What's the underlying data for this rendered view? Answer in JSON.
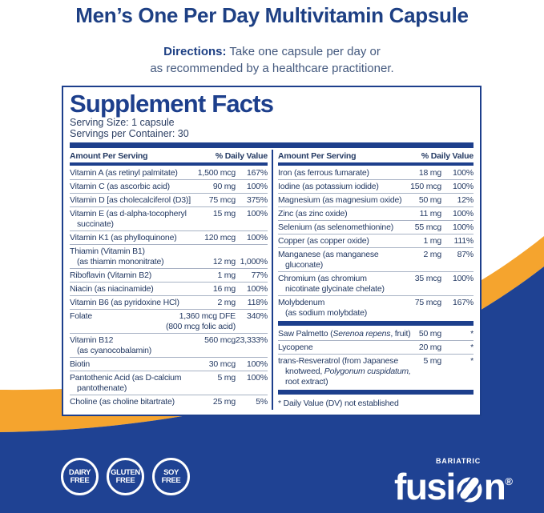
{
  "colors": {
    "navy": "#1e4084",
    "panel_ink": "#1d3f8c",
    "orange": "#f5a42e",
    "band_blue": "#1f4293",
    "text": "#243a63"
  },
  "page": {
    "title": "Men’s One Per Day Multivitamin Capsule",
    "directions_label": "Directions:",
    "directions_line1": "Take one capsule per day or",
    "directions_line2": "as recommended by a healthcare practitioner."
  },
  "panel": {
    "heading": "Supplement Facts",
    "serving_size": "Serving Size: 1 capsule",
    "servings_per_container": "Servings per Container:  30",
    "col_header_left": "Amount Per Serving",
    "col_header_right": "% Daily Value",
    "footnote": "* Daily Value (DV) not established",
    "left_rows": [
      {
        "lines": [
          [
            {
              "t": "Vitamin A (as retinyl palmitate)"
            }
          ]
        ],
        "amount": "1,500 mcg",
        "dv": "167%"
      },
      {
        "lines": [
          [
            {
              "t": "Vitamin C (as ascorbic acid)"
            }
          ]
        ],
        "amount": "90 mg",
        "dv": "100%"
      },
      {
        "lines": [
          [
            {
              "t": "Vitamin D [as cholecalciferol (D3)]"
            }
          ]
        ],
        "amount": "75 mcg",
        "dv": "375%"
      },
      {
        "lines": [
          [
            {
              "t": "Vitamin E (as d-alpha-tocopheryl"
            }
          ],
          [
            {
              "t": "succinate)"
            }
          ]
        ],
        "amount": "15 mg",
        "dv": "100%"
      },
      {
        "lines": [
          [
            {
              "t": "Vitamin K1 (as phylloquinone)"
            }
          ]
        ],
        "amount": "120 mcg",
        "dv": "100%"
      },
      {
        "lines": [
          [
            {
              "t": "Thiamin (Vitamin B1)"
            }
          ],
          [
            {
              "t": "(as thiamin mononitrate)"
            }
          ]
        ],
        "amount": "12 mg",
        "dv": "1,000%",
        "bottom": true
      },
      {
        "lines": [
          [
            {
              "t": "Riboflavin (Vitamin B2)"
            }
          ]
        ],
        "amount": "1 mg",
        "dv": "77%"
      },
      {
        "lines": [
          [
            {
              "t": "Niacin (as niacinamide)"
            }
          ]
        ],
        "amount": "16 mg",
        "dv": "100%"
      },
      {
        "lines": [
          [
            {
              "t": "Vitamin B6 (as pyridoxine HCl)"
            }
          ]
        ],
        "amount": "2 mg",
        "dv": "118%"
      },
      {
        "lines": [
          [
            {
              "t": "Folate"
            }
          ]
        ],
        "amount_lines": [
          "1,360 mcg DFE",
          "(800 mcg folic acid)"
        ],
        "dv": "340%"
      },
      {
        "lines": [
          [
            {
              "t": "Vitamin B12"
            }
          ],
          [
            {
              "t": "(as cyanocobalamin)"
            }
          ]
        ],
        "amount": "560 mcg",
        "dv": "23,333%"
      },
      {
        "lines": [
          [
            {
              "t": "Biotin"
            }
          ]
        ],
        "amount": "30 mcg",
        "dv": "100%"
      },
      {
        "lines": [
          [
            {
              "t": "Pantothenic Acid (as D-calcium"
            }
          ],
          [
            {
              "t": "pantothenate)"
            }
          ]
        ],
        "amount": "5 mg",
        "dv": "100%"
      },
      {
        "lines": [
          [
            {
              "t": "Choline (as choline bitartrate)"
            }
          ]
        ],
        "amount": "25 mg",
        "dv": "5%"
      }
    ],
    "right_rows": [
      {
        "lines": [
          [
            {
              "t": "Iron (as ferrous fumarate)"
            }
          ]
        ],
        "amount": "18 mg",
        "dv": "100%"
      },
      {
        "lines": [
          [
            {
              "t": "Iodine (as potassium iodide)"
            }
          ]
        ],
        "amount": "150 mcg",
        "dv": "100%"
      },
      {
        "lines": [
          [
            {
              "t": "Magnesium (as magnesium oxide)"
            }
          ]
        ],
        "amount": "50 mg",
        "dv": "12%"
      },
      {
        "lines": [
          [
            {
              "t": "Zinc (as zinc oxide)"
            }
          ]
        ],
        "amount": "11 mg",
        "dv": "100%"
      },
      {
        "lines": [
          [
            {
              "t": "Selenium (as selenomethionine)"
            }
          ]
        ],
        "amount": "55 mcg",
        "dv": "100%"
      },
      {
        "lines": [
          [
            {
              "t": "Copper (as copper oxide)"
            }
          ]
        ],
        "amount": "1 mg",
        "dv": "111%"
      },
      {
        "lines": [
          [
            {
              "t": "Manganese (as manganese"
            }
          ],
          [
            {
              "t": "gluconate)"
            }
          ]
        ],
        "amount": "2 mg",
        "dv": "87%"
      },
      {
        "lines": [
          [
            {
              "t": "Chromium (as chromium"
            }
          ],
          [
            {
              "t": "nicotinate glycinate chelate)"
            }
          ]
        ],
        "amount": "35 mcg",
        "dv": "100%"
      },
      {
        "lines": [
          [
            {
              "t": "Molybdenum"
            }
          ],
          [
            {
              "t": "(as sodium molybdate)"
            }
          ]
        ],
        "amount": "75 mcg",
        "dv": "167%",
        "bar_after": true
      },
      {
        "lines": [
          [
            {
              "t": "Saw Palmetto ("
            },
            {
              "t": "Serenoa repens",
              "i": true
            },
            {
              "t": ", fruit)"
            }
          ]
        ],
        "amount": "50 mg",
        "dv": "*"
      },
      {
        "lines": [
          [
            {
              "t": "Lycopene"
            }
          ]
        ],
        "amount": "20 mg",
        "dv": "*"
      },
      {
        "lines": [
          [
            {
              "t": "trans-Resveratrol (from Japanese"
            }
          ],
          [
            {
              "t": "knotweed, "
            },
            {
              "t": "Polygonum cuspidatum,",
              "i": true
            }
          ],
          [
            {
              "t": "root extract)"
            }
          ]
        ],
        "amount": "5 mg",
        "dv": "*",
        "bar_after": true
      }
    ]
  },
  "badges": [
    {
      "line1": "DAIRY",
      "line2": "FREE"
    },
    {
      "line1": "GLUTEN",
      "line2": "FREE"
    },
    {
      "line1": "SOY",
      "line2": "FREE"
    }
  ],
  "logo": {
    "top": "BARIATRIC",
    "word_start": "fusi",
    "word_end": "n",
    "reg": "®"
  }
}
